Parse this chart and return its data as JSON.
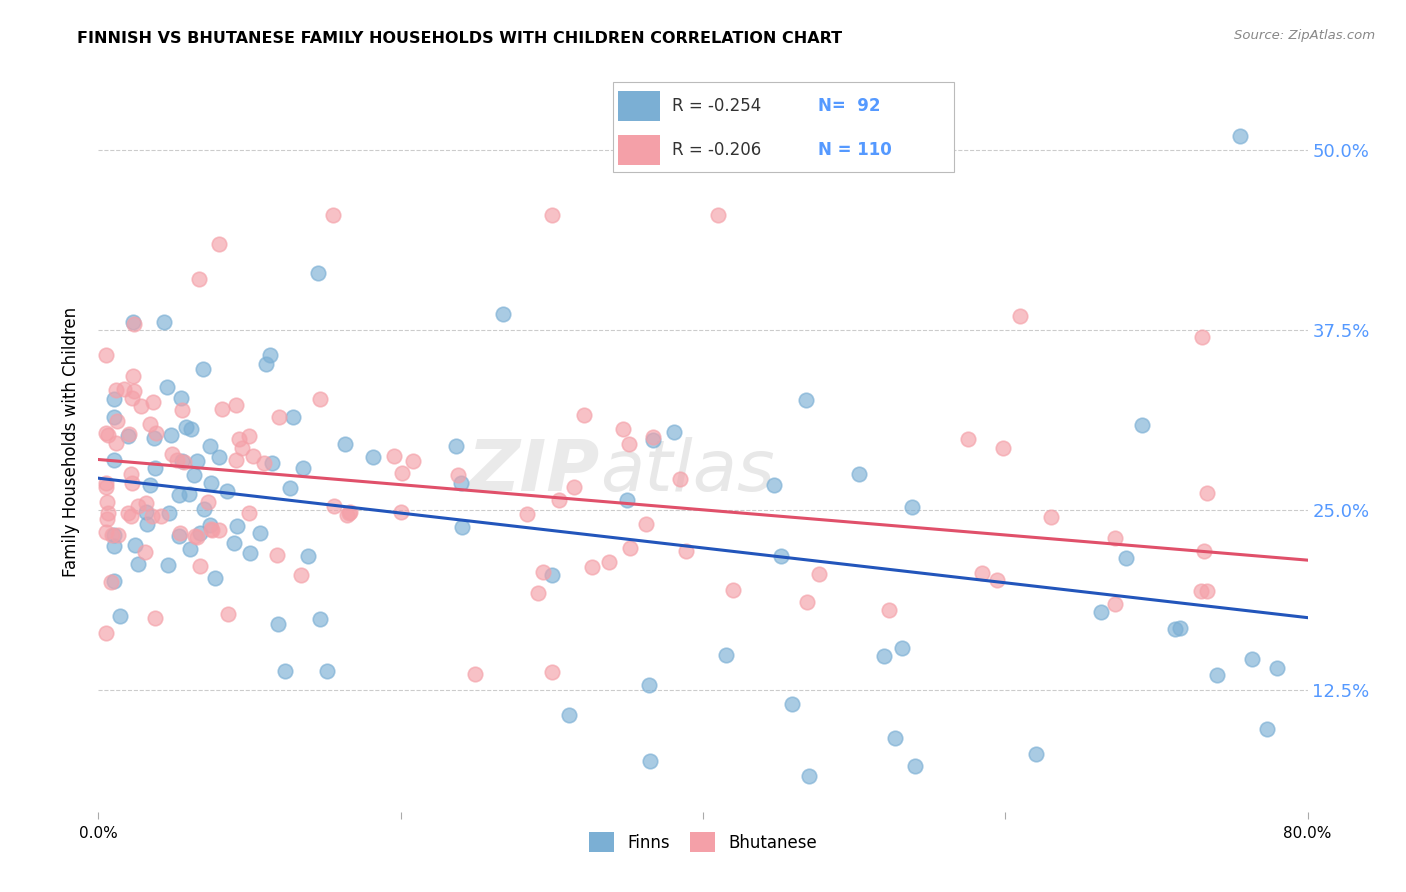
{
  "title": "FINNISH VS BHUTANESE FAMILY HOUSEHOLDS WITH CHILDREN CORRELATION CHART",
  "source": "Source: ZipAtlas.com",
  "ylabel": "Family Households with Children",
  "ytick_labels": [
    "12.5%",
    "25.0%",
    "37.5%",
    "50.0%"
  ],
  "ytick_values": [
    0.125,
    0.25,
    0.375,
    0.5
  ],
  "xlim": [
    0.0,
    0.8
  ],
  "ylim": [
    0.04,
    0.555
  ],
  "legend_finns_R": "R = -0.254",
  "legend_finns_N": "N=  92",
  "legend_bhutanese_R": "R = -0.206",
  "legend_bhutanese_N": "N = 110",
  "finns_color": "#7BAFD4",
  "bhutanese_color": "#F4A0A8",
  "finns_line_color": "#2255BB",
  "bhutanese_line_color": "#E0506A",
  "watermark_zip": "ZIP",
  "watermark_atlas": "atlas",
  "background_color": "#FFFFFF",
  "grid_color": "#CCCCCC",
  "finns_line_y0": 0.272,
  "finns_line_y1": 0.175,
  "bhutanese_line_y0": 0.285,
  "bhutanese_line_y1": 0.215
}
